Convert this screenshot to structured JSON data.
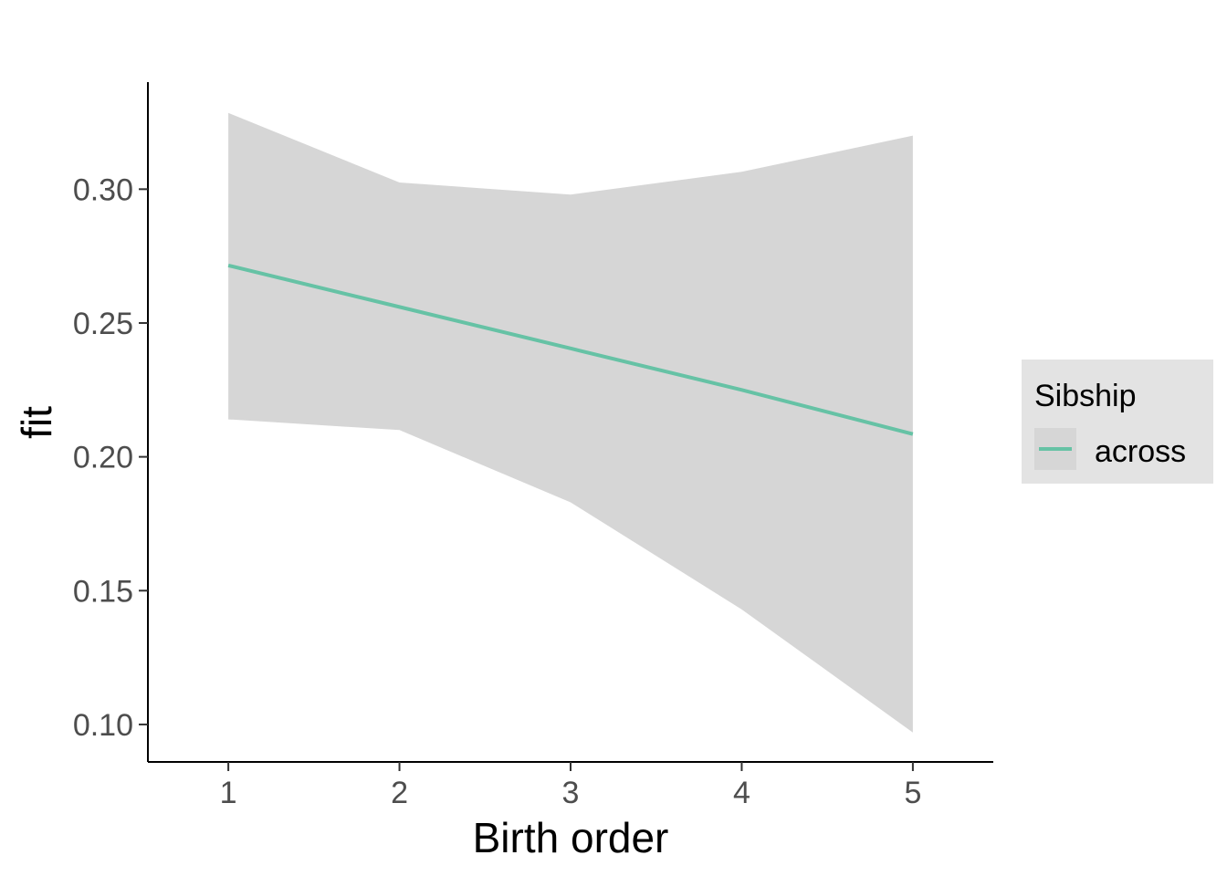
{
  "chart_data": {
    "type": "line",
    "title": "",
    "xlabel": "Birth order",
    "ylabel": "fit",
    "x": [
      1,
      2,
      3,
      4,
      5
    ],
    "xticks": [
      "1",
      "2",
      "3",
      "4",
      "5"
    ],
    "yticks": [
      "0.10",
      "0.15",
      "0.20",
      "0.25",
      "0.30"
    ],
    "xlim": [
      0.53,
      5.47
    ],
    "ylim": [
      0.086,
      0.34
    ],
    "grid": false,
    "legend_position": "right",
    "legend_title": "Sibship",
    "series": [
      {
        "name": "across",
        "color": "#66c2a5",
        "fit": [
          0.2715,
          0.256,
          0.2405,
          0.225,
          0.2085
        ],
        "lower": [
          0.214,
          0.21,
          0.183,
          0.143,
          0.097
        ],
        "upper": [
          0.3285,
          0.3025,
          0.298,
          0.3065,
          0.32
        ]
      }
    ],
    "ribbon_color": "#d6d6d6"
  }
}
